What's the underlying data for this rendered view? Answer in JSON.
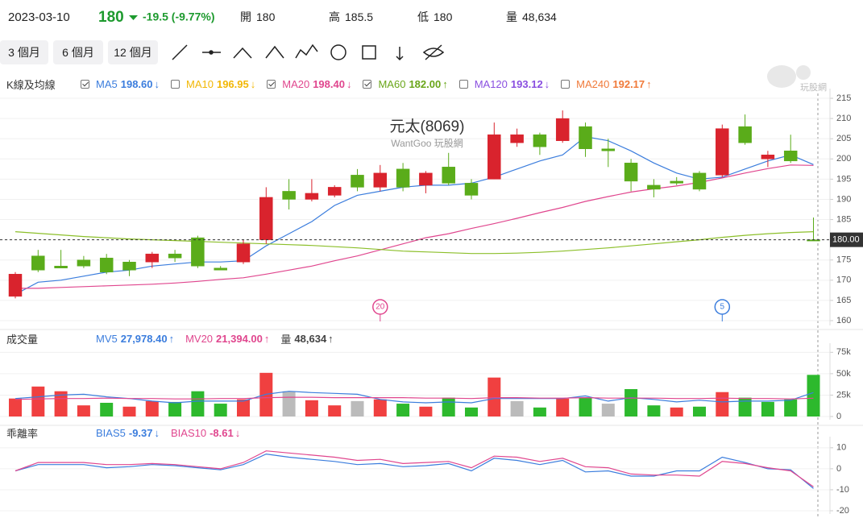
{
  "header": {
    "date": "2023-03-10",
    "price": "180",
    "change": "-19.5 (-9.77%)",
    "stats": [
      {
        "label": "開",
        "value": "180"
      },
      {
        "label": "高",
        "value": "185.5"
      },
      {
        "label": "低",
        "value": "180"
      },
      {
        "label": "量",
        "value": "48,634"
      }
    ]
  },
  "buttons": [
    "3 個月",
    "6 個月",
    "12 個月"
  ],
  "logo": "玩股網",
  "chart_data": [
    {
      "type": "candlestick",
      "title": "元太(8069)",
      "subtitle": "WantGoo 玩股網",
      "panel_label": "K線及均線",
      "indicators": [
        {
          "name": "MA5",
          "value": "198.60",
          "arrow": "↓",
          "color": "#3b7ddd",
          "checked": true
        },
        {
          "name": "MA10",
          "value": "196.95",
          "arrow": "↓",
          "color": "#f2b705",
          "checked": false
        },
        {
          "name": "MA20",
          "value": "198.40",
          "arrow": "↓",
          "color": "#e0468e",
          "checked": true
        },
        {
          "name": "MA60",
          "value": "182.00",
          "arrow": "↑",
          "color": "#6aa61a",
          "checked": true
        },
        {
          "name": "MA120",
          "value": "193.12",
          "arrow": "↓",
          "color": "#8a4fe0",
          "checked": false
        },
        {
          "name": "MA240",
          "value": "192.17",
          "arrow": "↑",
          "color": "#f07a3a",
          "checked": false
        }
      ],
      "up_color": "#d9232d",
      "down_color": "#5aac1a",
      "open": [
        166,
        176,
        173.5,
        175,
        175.5,
        174.5,
        174.5,
        176.5,
        180.5,
        173,
        174.5,
        180,
        192,
        190,
        191,
        196,
        193,
        197.5,
        193.5,
        198,
        194,
        195,
        204,
        206,
        204.5,
        208,
        202.5,
        199,
        193.5,
        194.5,
        196.5,
        196,
        208,
        200,
        202,
        180
      ],
      "high": [
        172,
        177.5,
        177.5,
        176,
        176.5,
        175,
        177,
        177.5,
        181,
        173.5,
        180,
        193,
        195,
        195,
        193.5,
        197.5,
        198.5,
        199,
        197,
        201.5,
        195,
        209,
        207.5,
        206.5,
        212,
        209,
        205,
        200,
        195,
        195.5,
        197,
        208.5,
        211,
        202,
        206,
        185.5
      ],
      "low": [
        165.5,
        172,
        173,
        173,
        171.5,
        171,
        173,
        174.5,
        173,
        172.5,
        174,
        179,
        187.5,
        189.5,
        190.5,
        192,
        192,
        192,
        191.5,
        193.5,
        190,
        195,
        203,
        201,
        204,
        200.5,
        198,
        192,
        190.5,
        193.5,
        192,
        195.5,
        203.5,
        198,
        199,
        180
      ],
      "close": [
        171.5,
        172.5,
        173,
        173.5,
        172,
        172.5,
        176.5,
        175.5,
        173.5,
        172.5,
        179,
        190.5,
        190,
        191.5,
        193,
        193,
        196.5,
        193,
        196.5,
        194,
        191,
        206,
        206,
        203,
        210,
        202.5,
        202,
        194.5,
        192.5,
        194,
        192.5,
        207.5,
        204,
        201,
        199.5,
        180
      ],
      "series": [
        {
          "name": "MA5",
          "color": "#3b7ddd",
          "values": [
            166.5,
            169.5,
            170,
            171,
            172,
            172.5,
            173.5,
            174,
            174.5,
            174.5,
            174.8,
            178.5,
            181.5,
            184.5,
            188.5,
            191,
            192,
            193,
            193.5,
            193.5,
            194,
            195.5,
            197.5,
            199.5,
            201,
            205.5,
            204.5,
            202,
            199,
            196.5,
            195,
            195.5,
            197.5,
            199.5,
            201,
            198.6
          ]
        },
        {
          "name": "MA20",
          "color": "#e0468e",
          "values": [
            168,
            168,
            168.2,
            168.4,
            168.6,
            168.8,
            169,
            169.3,
            169.7,
            170.2,
            170.6,
            171.5,
            172.5,
            173.5,
            174.8,
            176,
            177.5,
            179,
            180.5,
            181.5,
            182.8,
            184,
            185.3,
            186.7,
            188,
            189.5,
            190.7,
            191.8,
            192.6,
            193.3,
            194.2,
            195.3,
            196.5,
            197.6,
            198.5,
            198.4
          ]
        },
        {
          "name": "MA60",
          "color": "#8cbf2a",
          "values": [
            182,
            181.6,
            181.2,
            180.8,
            180.5,
            180.2,
            180,
            179.8,
            179.6,
            179.4,
            179.2,
            179,
            178.8,
            178.6,
            178.3,
            178,
            177.6,
            177.2,
            177,
            176.8,
            176.6,
            176.6,
            176.7,
            176.9,
            177.2,
            177.6,
            178,
            178.5,
            179,
            179.5,
            180,
            180.6,
            181.1,
            181.5,
            181.8,
            182
          ]
        }
      ],
      "last_price": {
        "value": 180,
        "label": "180.00"
      },
      "markers": [
        {
          "at": 16,
          "label": "20",
          "color": "#e0468e"
        },
        {
          "at": 31,
          "label": "5",
          "color": "#3b7ddd"
        }
      ],
      "ylim": [
        159.6,
        216.2
      ],
      "yticks": [
        160,
        165,
        170,
        175,
        180,
        185,
        190,
        195,
        200,
        205,
        210,
        215
      ],
      "grid": true
    },
    {
      "type": "bar",
      "panel_label": "成交量",
      "indicators": [
        {
          "name": "MV5",
          "value": "27,978.40",
          "arrow": "↑",
          "color": "#3b7ddd"
        },
        {
          "name": "MV20",
          "value": "21,394.00",
          "arrow": "↑",
          "color": "#e0468e"
        },
        {
          "name": "量",
          "value": "48,634",
          "arrow": "↑",
          "color": "#444444"
        }
      ],
      "values": [
        21000,
        35000,
        29500,
        13000,
        16000,
        11500,
        18000,
        17000,
        29500,
        15000,
        20000,
        51000,
        29500,
        19000,
        13000,
        18000,
        20000,
        15000,
        11500,
        22000,
        10500,
        45500,
        18000,
        10500,
        21000,
        22000,
        15000,
        32000,
        13000,
        10500,
        11500,
        28500,
        22000,
        17000,
        20000,
        48634
      ],
      "colors": [
        "#f04040",
        "#f04040",
        "#f04040",
        "#f04040",
        "#2db92d",
        "#f04040",
        "#f04040",
        "#2db92d",
        "#2db92d",
        "#2db92d",
        "#f04040",
        "#f04040",
        "#bbbbbb",
        "#f04040",
        "#f04040",
        "#bbbbbb",
        "#f04040",
        "#2db92d",
        "#f04040",
        "#2db92d",
        "#2db92d",
        "#f04040",
        "#bbbbbb",
        "#2db92d",
        "#f04040",
        "#2db92d",
        "#bbbbbb",
        "#2db92d",
        "#2db92d",
        "#f04040",
        "#2db92d",
        "#f04040",
        "#2db92d",
        "#2db92d",
        "#2db92d",
        "#2db92d"
      ],
      "series": [
        {
          "name": "MV5",
          "color": "#3b7ddd",
          "values": [
            21000,
            23000,
            25000,
            26000,
            23000,
            21000,
            18000,
            16000,
            18000,
            18000,
            18000,
            26000,
            29500,
            28000,
            27000,
            26000,
            20000,
            17000,
            16000,
            17000,
            16000,
            21000,
            21000,
            21000,
            21000,
            24000,
            18000,
            22000,
            20000,
            17000,
            19000,
            17000,
            18000,
            18000,
            19000,
            27978.4
          ]
        },
        {
          "name": "MV20",
          "color": "#e0468e",
          "values": [
            20000,
            20500,
            21000,
            21000,
            21500,
            21000,
            21000,
            20500,
            20500,
            21000,
            21000,
            22000,
            22500,
            22500,
            22000,
            22000,
            22000,
            22000,
            21500,
            21500,
            21000,
            22000,
            22000,
            21500,
            21500,
            22000,
            21500,
            21500,
            21500,
            21000,
            21000,
            21500,
            21000,
            21000,
            20500,
            21394
          ]
        }
      ],
      "ylim": [
        0,
        80000
      ],
      "yticks": [
        0,
        {
          "value": 25000,
          "label": "25k"
        },
        {
          "value": 50000,
          "label": "50k"
        },
        {
          "value": 75000,
          "label": "75k"
        }
      ],
      "grid": true
    },
    {
      "type": "line",
      "panel_label": "乖離率",
      "indicators": [
        {
          "name": "BIAS5",
          "value": "-9.37",
          "arrow": "↓",
          "color": "#3b7ddd"
        },
        {
          "name": "BIAS10",
          "value": "-8.61",
          "arrow": "↓",
          "color": "#e0468e"
        }
      ],
      "series": [
        {
          "name": "BIAS5",
          "color": "#3b7ddd",
          "values": [
            -1,
            2,
            2,
            2,
            0.5,
            1,
            2,
            1.5,
            0.5,
            -0.5,
            2,
            7,
            5.5,
            4.5,
            3.5,
            2,
            2.5,
            1,
            1.5,
            2.5,
            -1,
            5,
            4,
            2,
            4,
            -1.5,
            -1,
            -3.5,
            -3.5,
            -1,
            -1,
            5.5,
            3,
            0,
            -0.5,
            -9.37
          ]
        },
        {
          "name": "BIAS10",
          "color": "#e0468e",
          "values": [
            -1,
            3,
            3,
            3,
            2,
            2,
            2.5,
            2,
            1,
            0,
            3,
            8.5,
            7.5,
            6.5,
            5.5,
            4,
            4.5,
            2.5,
            3,
            3.5,
            0.5,
            6,
            5.5,
            3.5,
            5,
            1,
            0.5,
            -2.5,
            -3,
            -3,
            -3.5,
            3.5,
            2.5,
            0.5,
            -1,
            -8.61
          ]
        }
      ],
      "ylim": [
        -20,
        13
      ],
      "yticks": [
        -20,
        -10,
        0,
        10
      ],
      "grid": true
    }
  ]
}
